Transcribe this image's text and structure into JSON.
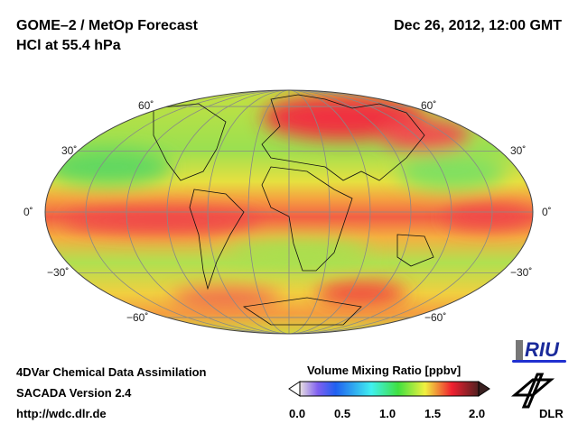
{
  "header": {
    "title": "GOME–2 / MetOp Forecast",
    "subtitle": "HCl at 55.4 hPa",
    "datetime": "Dec 26, 2012, 12:00 GMT"
  },
  "map": {
    "lat_labels_left": [
      "60˚",
      "30˚",
      "0˚",
      "−30˚",
      "−60˚"
    ],
    "lat_labels_right": [
      "60˚",
      "30˚",
      "0˚",
      "−30˚",
      "−60˚"
    ]
  },
  "footer": {
    "line1": "4DVar Chemical Data Assimilation",
    "line2": "SACADA Version 2.4",
    "line3": "http://wdc.dlr.de"
  },
  "colorbar": {
    "title": "Volume Mixing Ratio [ppbv]",
    "ticks": [
      "0.0",
      "0.5",
      "1.0",
      "1.5",
      "2.0"
    ],
    "range": [
      0,
      2
    ]
  },
  "logos": {
    "riu": "RIU",
    "dlr": "DLR"
  }
}
